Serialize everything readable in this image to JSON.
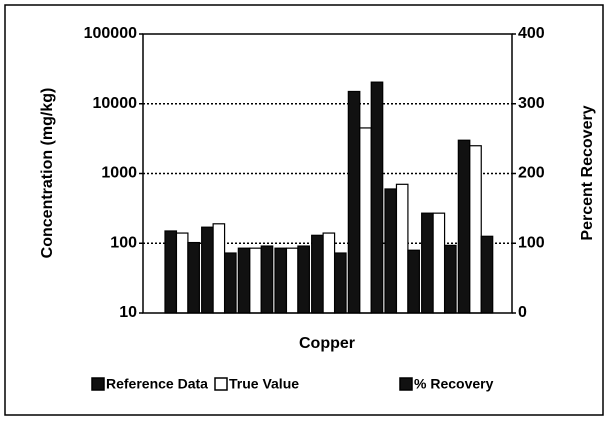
{
  "chart_data": {
    "type": "bar",
    "y_label": "Concentration (mg/kg)",
    "y2_label": "Percent Recovery",
    "x_label": "Copper",
    "log_scale": true,
    "grid": true,
    "ylim": [
      10,
      100000
    ],
    "yticks": [
      10,
      100,
      1000,
      10000,
      100000
    ],
    "y2lim": [
      0,
      400
    ],
    "y2ticks": [
      0,
      100,
      200,
      300,
      400
    ],
    "series": [
      {
        "name": "Reference Data",
        "color": "#111111",
        "values": [
          150,
          170,
          85,
          85,
          130,
          15000,
          600,
          270,
          3000
        ]
      },
      {
        "name": "True Value",
        "color": "#ffffff",
        "values": [
          140,
          190,
          85,
          85,
          140,
          4500,
          700,
          270,
          2500
        ]
      },
      {
        "name": "% Recovery",
        "color": "#111111",
        "axis": "y2",
        "values": [
          101,
          86,
          96,
          96,
          86,
          331,
          90,
          97,
          110
        ]
      }
    ]
  }
}
